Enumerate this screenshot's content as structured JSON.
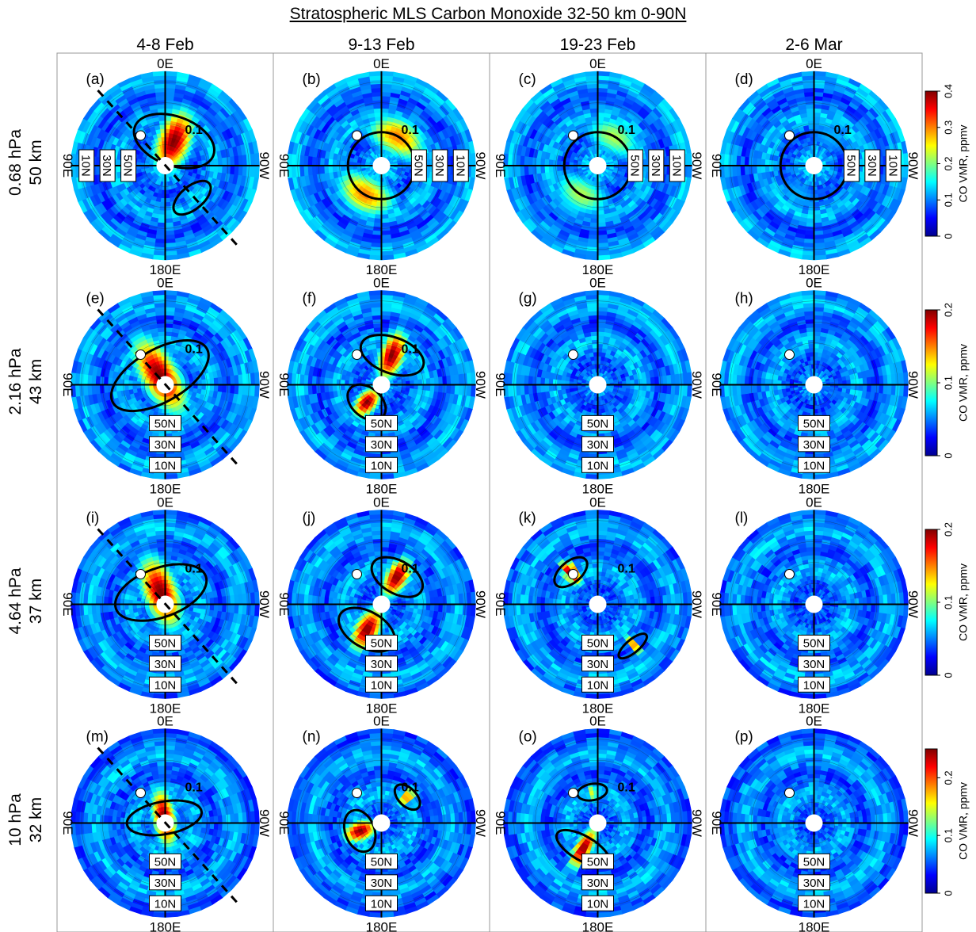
{
  "figure": {
    "title": "Stratospheric MLS Carbon Monoxide   32-50 km   0-90N",
    "column_headers": [
      "4-8 Feb",
      "9-13 Feb",
      "19-23 Feb",
      "2-6 Mar"
    ],
    "row_labels": [
      {
        "pressure": "0.68 hPa",
        "altitude": "50 km"
      },
      {
        "pressure": "2.16 hPa",
        "altitude": "43 km"
      },
      {
        "pressure": "4.64 hPa",
        "altitude": "37 km"
      },
      {
        "pressure": "10 hPa",
        "altitude": "32 km"
      }
    ],
    "colorbar_label": "CO VMR, ppmv",
    "colormap": [
      "#00008f",
      "#0000ff",
      "#0080ff",
      "#00ffff",
      "#80ff80",
      "#ffff00",
      "#ff8000",
      "#ff0000",
      "#800000"
    ]
  },
  "chart_data": {
    "type": "heatmap",
    "projection": "north polar stereographic",
    "lat_range": [
      0,
      90
    ],
    "lon_labels": {
      "top": "0E",
      "left": "90E",
      "right": "90W",
      "bottom": "180E"
    },
    "lat_ring_labels": [
      "50N",
      "30N",
      "10N"
    ],
    "rows": [
      {
        "colorbar": {
          "range": [
            0,
            0.4
          ],
          "ticks": [
            0,
            0.1,
            0.2,
            0.3,
            0.4
          ]
        },
        "panels": [
          {
            "label": "(a)",
            "contour_label": "0.1",
            "dashed_line": true,
            "ring_labels_axis": "horizontal-left",
            "features": [
              {
                "kind": "blob",
                "lon": 20,
                "colat": 25,
                "peak": 0.4,
                "size": 30,
                "len": 1.4
              },
              {
                "kind": "arc",
                "lon": 140,
                "colat": 40,
                "peak": 0.15,
                "size": 14,
                "len": 1.6
              }
            ]
          },
          {
            "label": "(b)",
            "contour_label": "0.1",
            "dashed_line": false,
            "ring_labels_axis": "horizontal-right",
            "features": [
              {
                "kind": "ring",
                "lon": 0,
                "colat": 0,
                "peak": 0.3,
                "size": 55,
                "len": 1
              }
            ]
          },
          {
            "label": "(c)",
            "contour_label": "0.1",
            "dashed_line": false,
            "ring_labels_axis": "horizontal-right",
            "features": [
              {
                "kind": "ring",
                "lon": 0,
                "colat": 0,
                "peak": 0.22,
                "size": 55,
                "len": 1
              }
            ]
          },
          {
            "label": "(d)",
            "contour_label": "0.1",
            "dashed_line": false,
            "ring_labels_axis": "horizontal-right",
            "features": [
              {
                "kind": "ring",
                "lon": 0,
                "colat": 0,
                "peak": 0.12,
                "size": 45,
                "len": 1
              }
            ]
          }
        ]
      },
      {
        "colorbar": {
          "range": [
            0,
            0.2
          ],
          "ticks": [
            0,
            0.1,
            0.2
          ]
        },
        "panels": [
          {
            "label": "(e)",
            "contour_label": "0.1",
            "dashed_line": true,
            "ring_labels_axis": "vertical-bottom",
            "features": [
              {
                "kind": "blob",
                "lon": -30,
                "colat": 10,
                "peak": 0.2,
                "size": 32,
                "len": 1.7
              }
            ]
          },
          {
            "label": "(f)",
            "contour_label": "0.1",
            "dashed_line": false,
            "ring_labels_axis": "vertical-bottom",
            "features": [
              {
                "kind": "blob",
                "lon": 20,
                "colat": 30,
                "peak": 0.2,
                "size": 22,
                "len": 1.5
              },
              {
                "kind": "blob",
                "lon": -140,
                "colat": 22,
                "peak": 0.2,
                "size": 18,
                "len": 1.2
              }
            ]
          },
          {
            "label": "(g)",
            "contour_label": "",
            "dashed_line": false,
            "ring_labels_axis": "vertical-bottom",
            "features": []
          },
          {
            "label": "(h)",
            "contour_label": "",
            "dashed_line": false,
            "ring_labels_axis": "vertical-bottom",
            "features": []
          }
        ]
      },
      {
        "colorbar": {
          "range": [
            0,
            0.2
          ],
          "ticks": [
            0,
            0.1,
            0.2
          ]
        },
        "panels": [
          {
            "label": "(i)",
            "contour_label": "0.1",
            "dashed_line": true,
            "ring_labels_axis": "vertical-bottom",
            "features": [
              {
                "kind": "blob",
                "lon": -20,
                "colat": 12,
                "peak": 0.2,
                "size": 30,
                "len": 1.6
              }
            ]
          },
          {
            "label": "(j)",
            "contour_label": "0.1",
            "dashed_line": false,
            "ring_labels_axis": "vertical-bottom",
            "features": [
              {
                "kind": "blob",
                "lon": 30,
                "colat": 30,
                "peak": 0.2,
                "size": 20,
                "len": 1.4
              },
              {
                "kind": "blob",
                "lon": -150,
                "colat": 28,
                "peak": 0.2,
                "size": 22,
                "len": 1.4
              }
            ]
          },
          {
            "label": "(k)",
            "contour_label": "0.1",
            "dashed_line": false,
            "ring_labels_axis": "vertical-bottom",
            "features": [
              {
                "kind": "blob",
                "lon": -40,
                "colat": 40,
                "peak": 0.2,
                "size": 13,
                "len": 1.5
              },
              {
                "kind": "arc",
                "lon": 140,
                "colat": 52,
                "peak": 0.15,
                "size": 8,
                "len": 2.2
              }
            ]
          },
          {
            "label": "(l)",
            "contour_label": "",
            "dashed_line": false,
            "ring_labels_axis": "vertical-bottom",
            "features": []
          }
        ]
      },
      {
        "colorbar": {
          "range": [
            0,
            0.25
          ],
          "ticks": [
            0,
            0.1,
            0.2
          ]
        },
        "panels": [
          {
            "label": "(m)",
            "contour_label": "0.1",
            "dashed_line": true,
            "ring_labels_axis": "vertical-bottom",
            "features": [
              {
                "kind": "blob",
                "lon": -10,
                "colat": 5,
                "peak": 0.25,
                "size": 20,
                "len": 1.9
              }
            ]
          },
          {
            "label": "(n)",
            "contour_label": "0.1",
            "dashed_line": false,
            "ring_labels_axis": "vertical-bottom",
            "features": [
              {
                "kind": "blob",
                "lon": 45,
                "colat": 35,
                "peak": 0.2,
                "size": 11,
                "len": 1.4
              },
              {
                "kind": "blob",
                "lon": -110,
                "colat": 22,
                "peak": 0.25,
                "size": 18,
                "len": 1.2
              }
            ]
          },
          {
            "label": "(o)",
            "contour_label": "0.1",
            "dashed_line": false,
            "ring_labels_axis": "vertical-bottom",
            "features": [
              {
                "kind": "blob",
                "lon": -10,
                "colat": 30,
                "peak": 0.15,
                "size": 10,
                "len": 1.5
              },
              {
                "kind": "blob",
                "lon": -150,
                "colat": 28,
                "peak": 0.25,
                "size": 15,
                "len": 2
              }
            ]
          },
          {
            "label": "(p)",
            "contour_label": "",
            "dashed_line": false,
            "ring_labels_axis": "vertical-bottom",
            "features": []
          }
        ]
      }
    ]
  }
}
